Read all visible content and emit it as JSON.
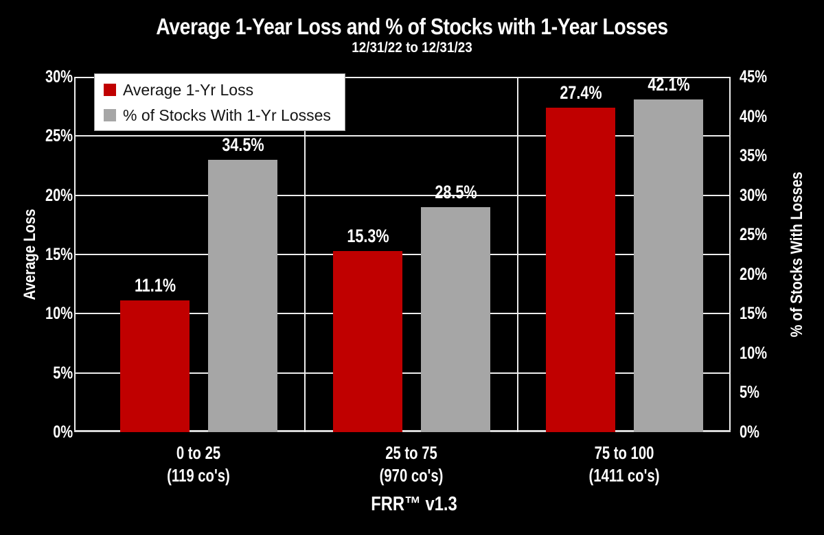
{
  "page": {
    "background": "#000000",
    "text_color": "#FFFFFF"
  },
  "header": {
    "title": "Average 1-Year Loss and % of Stocks with 1-Year Losses",
    "subtitle": "12/31/22 to 12/31/23"
  },
  "legend": {
    "position": "top-left",
    "background": "#FFFFFF",
    "items": [
      {
        "label": "Average 1-Yr Loss",
        "color": "#C00000"
      },
      {
        "label": "% of Stocks With 1-Yr Losses",
        "color": "#A6A6A6"
      }
    ]
  },
  "chart_data": {
    "type": "bar",
    "title": "Average 1-Year Loss and % of Stocks with 1-Year Losses",
    "subtitle": "12/31/22 to 12/31/23",
    "xlabel": "FRR™ v1.3",
    "categories": [
      {
        "range": "0 to 25",
        "count": "(119 co's)"
      },
      {
        "range": "25 to 75",
        "count": "(970 co's)"
      },
      {
        "range": "75 to 100",
        "count": "(1411 co's)"
      }
    ],
    "series": [
      {
        "name": "Average 1-Yr Loss",
        "axis": "left",
        "color": "#C00000",
        "values": [
          11.1,
          15.3,
          27.4
        ],
        "labels": [
          "11.1%",
          "15.3%",
          "27.4%"
        ]
      },
      {
        "name": "% of Stocks With 1-Yr Losses",
        "axis": "right",
        "color": "#A6A6A6",
        "values": [
          34.5,
          28.5,
          42.1
        ],
        "labels": [
          "34.5%",
          "28.5%",
          "42.1%"
        ]
      }
    ],
    "left_axis": {
      "title": "Average Loss",
      "min": 0,
      "max": 30,
      "ticks": [
        "30%",
        "25%",
        "20%",
        "15%",
        "10%",
        "5%",
        "0%"
      ]
    },
    "right_axis": {
      "title": "% of Stocks With Losses",
      "min": 0,
      "max": 45,
      "ticks": [
        "45%",
        "40%",
        "35%",
        "30%",
        "25%",
        "20%",
        "15%",
        "10%",
        "5%",
        "0%"
      ]
    },
    "grid": true,
    "legend_position": "top-left",
    "plot_background": "#000000",
    "gridline_color": "#EDEDED",
    "axis_line_color": "#D9D9D9"
  }
}
